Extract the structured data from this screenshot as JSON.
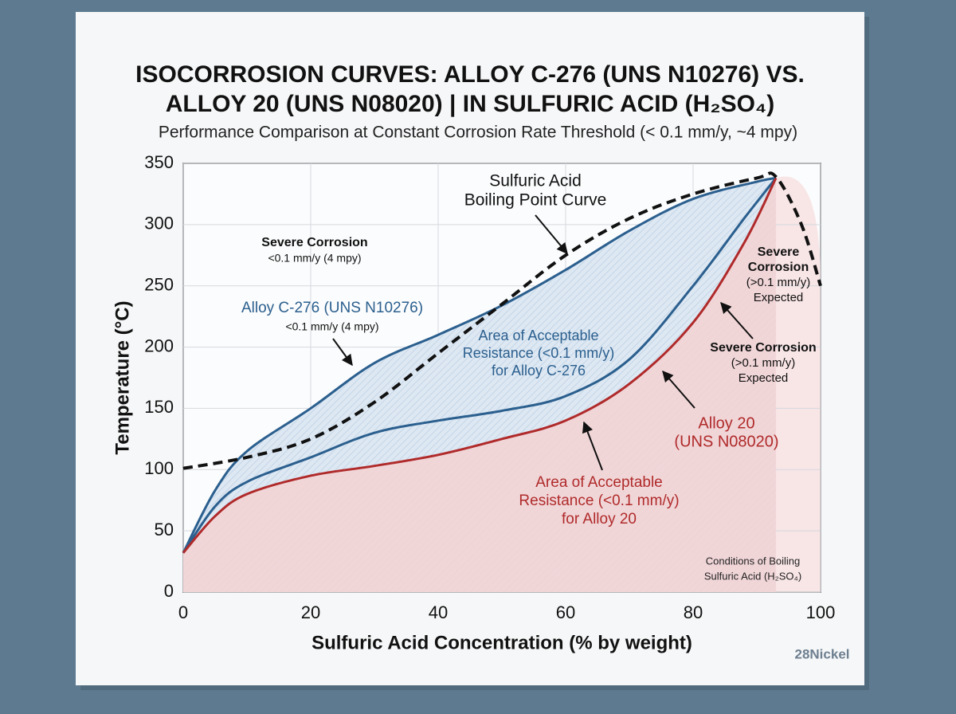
{
  "chart_data": {
    "type": "line",
    "title": [
      "ISOCORROSION CURVES: ALLOY C-276 (UNS N10276) VS.",
      "ALLOY 20 (UNS N08020) | IN SULFURIC ACID (H₂SO₄)"
    ],
    "subtitle": "Performance Comparison at Constant Corrosion Rate Threshold (< 0.1 mm/y, ~4 mpy)",
    "x_label": "Sulfuric Acid Concentration (% by weight)",
    "y_label": "Temperature (°C)",
    "xlim": [
      0,
      100
    ],
    "ylim": [
      0,
      350
    ],
    "xticks": [
      0,
      20,
      40,
      60,
      80,
      100
    ],
    "yticks": [
      0,
      50,
      100,
      150,
      200,
      250,
      300,
      350
    ],
    "grid": true,
    "series": [
      {
        "color": "#2b5f8e",
        "dashed": false,
        "x": [
          0,
          5,
          10,
          20,
          30,
          40,
          50,
          60,
          70,
          80,
          90,
          93
        ],
        "values": [
          32,
          83,
          115,
          150,
          187,
          210,
          234,
          263,
          295,
          321,
          335,
          338
        ]
      },
      {
        "color": "#2b5f8e",
        "dashed": false,
        "x": [
          0,
          5,
          10,
          20,
          30,
          40,
          50,
          60,
          70,
          80,
          88,
          93
        ],
        "values": [
          32,
          70,
          90,
          110,
          130,
          140,
          148,
          160,
          190,
          250,
          305,
          338
        ]
      },
      {
        "color": "#b02a2a",
        "dashed": false,
        "x": [
          0,
          5,
          10,
          20,
          30,
          40,
          50,
          60,
          70,
          80,
          88,
          93
        ],
        "values": [
          32,
          62,
          80,
          95,
          103,
          112,
          125,
          140,
          170,
          220,
          285,
          338
        ]
      },
      {
        "color": "#111111",
        "dashed": true,
        "x": [
          0,
          10,
          20,
          30,
          40,
          50,
          60,
          70,
          80,
          90,
          93,
          97,
          100
        ],
        "values": [
          101,
          110,
          125,
          155,
          195,
          235,
          275,
          305,
          325,
          338,
          339,
          300,
          250
        ]
      }
    ],
    "annotations": [
      {
        "lines": [
          "Severe Corrosion",
          "<0.1 mm/y (4 mpy)"
        ]
      },
      {
        "lines": [
          "Alloy C-276 (UNS N10276)",
          "<0.1 mm/y (4 mpy)"
        ]
      },
      {
        "lines": [
          "Sulfuric Acid",
          "Boiling Point Curve"
        ]
      },
      {
        "lines": [
          "Area of Acceptable",
          "Resistance (<0.1 mm/y)",
          "for Alloy C-276"
        ]
      },
      {
        "lines": [
          "Severe",
          "Corrosion",
          "(>0.1 mm/y)",
          "Expected"
        ]
      },
      {
        "lines": [
          "Severe Corrosion",
          "(>0.1 mm/y)",
          "Expected"
        ]
      },
      {
        "lines": [
          "Alloy 20",
          "(UNS N08020)"
        ]
      },
      {
        "lines": [
          "Area of Acceptable",
          "Resistance (<0.1 mm/y)",
          "for Alloy 20"
        ]
      },
      {
        "lines": [
          "Conditions of Boiling",
          "Sulfuric Acid (H₂SO₄)"
        ]
      }
    ],
    "watermark": "28Nickel"
  }
}
